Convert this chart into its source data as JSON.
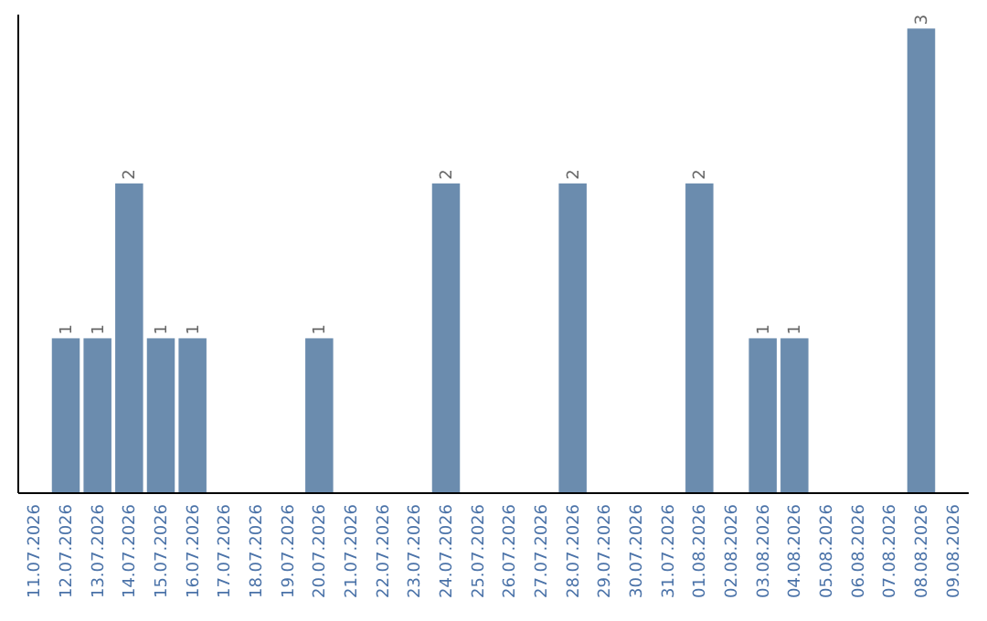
{
  "chart_data": {
    "type": "bar",
    "categories": [
      "11.07.2026",
      "12.07.2026",
      "13.07.2026",
      "14.07.2026",
      "15.07.2026",
      "16.07.2026",
      "17.07.2026",
      "18.07.2026",
      "19.07.2026",
      "20.07.2026",
      "21.07.2026",
      "22.07.2026",
      "23.07.2026",
      "24.07.2026",
      "25.07.2026",
      "26.07.2026",
      "27.07.2026",
      "28.07.2026",
      "29.07.2026",
      "30.07.2026",
      "31.07.2026",
      "01.08.2026",
      "02.08.2026",
      "03.08.2026",
      "04.08.2026",
      "05.08.2026",
      "06.08.2026",
      "07.08.2026",
      "08.08.2026",
      "09.08.2026"
    ],
    "values": [
      null,
      1,
      1,
      2,
      1,
      1,
      null,
      null,
      null,
      1,
      null,
      null,
      null,
      2,
      null,
      null,
      null,
      2,
      null,
      null,
      null,
      2,
      null,
      1,
      1,
      null,
      null,
      null,
      3,
      null
    ],
    "color": "#6b8cae",
    "data_labels": true
  }
}
